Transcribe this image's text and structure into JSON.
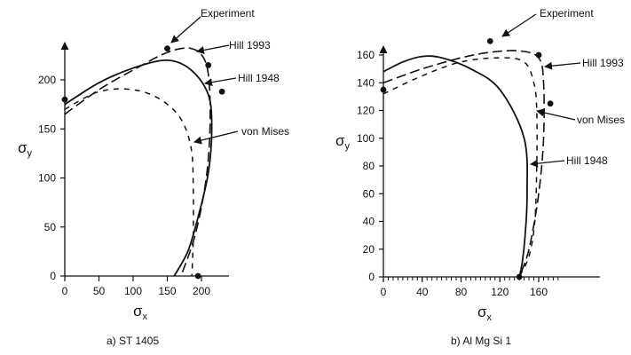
{
  "chart_data": [
    {
      "type": "line",
      "caption": "a)  ST 1405",
      "xlabel": "σ",
      "xlabel_sub": "x",
      "ylabel": "σ",
      "ylabel_sub": "y",
      "xlim": [
        0,
        250
      ],
      "ylim": [
        0,
        230
      ],
      "xticks": [
        0,
        50,
        100,
        150,
        200
      ],
      "yticks": [
        0,
        50,
        100,
        150,
        200
      ],
      "grid": false,
      "series": [
        {
          "name": "Experiment",
          "style": "points",
          "x": [
            0,
            150,
            210,
            230,
            195
          ],
          "y": [
            180,
            232,
            215,
            188,
            0
          ]
        },
        {
          "name": "Hill 1993",
          "style": "dashed-long",
          "x": [
            0,
            50,
            100,
            150,
            185,
            205,
            212,
            212,
            205,
            190,
            170
          ],
          "y": [
            165,
            190,
            210,
            228,
            232,
            220,
            190,
            140,
            90,
            40,
            0
          ]
        },
        {
          "name": "Hill 1948",
          "style": "solid",
          "x": [
            0,
            50,
            100,
            150,
            185,
            210,
            215,
            210,
            195,
            180,
            160
          ],
          "y": [
            175,
            197,
            212,
            220,
            210,
            185,
            150,
            105,
            60,
            25,
            0
          ]
        },
        {
          "name": "von Mises",
          "style": "dashed-short",
          "x": [
            0,
            50,
            100,
            140,
            170,
            185,
            188,
            188,
            186
          ],
          "y": [
            170,
            188,
            190,
            180,
            160,
            130,
            90,
            40,
            0
          ]
        }
      ],
      "annotations": [
        "Experiment",
        "Hill 1993",
        "Hill 1948",
        "von Mises"
      ]
    },
    {
      "type": "line",
      "caption": "b)  Al Mg Si 1",
      "xlabel": "σ",
      "xlabel_sub": "x",
      "ylabel": "σ",
      "ylabel_sub": "y",
      "xlim": [
        0,
        180
      ],
      "ylim": [
        0,
        170
      ],
      "xticks": [
        0,
        40,
        80,
        120,
        160
      ],
      "yticks": [
        0,
        20,
        40,
        60,
        80,
        100,
        120,
        140,
        160
      ],
      "grid": false,
      "series": [
        {
          "name": "Experiment",
          "style": "points",
          "x": [
            0,
            110,
            160,
            172,
            140
          ],
          "y": [
            135,
            170,
            160,
            125,
            0
          ]
        },
        {
          "name": "Hill 1993",
          "style": "dashed-long",
          "x": [
            0,
            40,
            80,
            110,
            140,
            160,
            165,
            165,
            160,
            150,
            140
          ],
          "y": [
            140,
            150,
            158,
            162,
            163,
            158,
            140,
            100,
            60,
            20,
            0
          ]
        },
        {
          "name": "Hill 1948",
          "style": "solid",
          "x": [
            0,
            20,
            40,
            60,
            90,
            120,
            145,
            148,
            146,
            143,
            140
          ],
          "y": [
            148,
            155,
            159,
            158,
            150,
            135,
            100,
            60,
            30,
            10,
            0
          ]
        },
        {
          "name": "von Mises",
          "style": "dashed-short",
          "x": [
            0,
            40,
            80,
            120,
            145,
            155,
            158,
            158,
            156,
            150,
            140
          ],
          "y": [
            132,
            145,
            155,
            158,
            155,
            140,
            120,
            80,
            40,
            15,
            0
          ]
        }
      ],
      "annotations": [
        "Experiment",
        "Hill 1993",
        "von Mises",
        "Hill 1948"
      ]
    }
  ]
}
